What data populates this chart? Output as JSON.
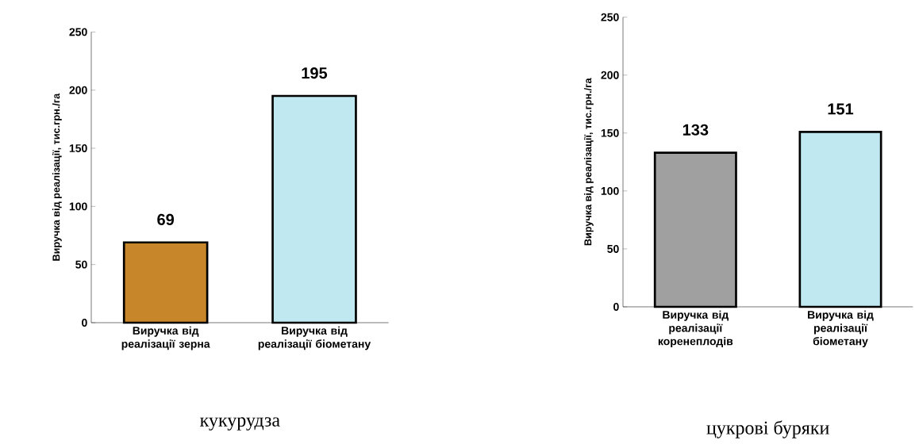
{
  "chart_data": [
    {
      "type": "bar",
      "title": "кукурудза",
      "ylabel": "Виручка від реалізації, тис.грн./га",
      "categories": [
        "Виручка від реалізації зерна",
        "Виручка від реалізації біометану"
      ],
      "values": [
        69,
        195
      ],
      "colors": [
        "#c8862a",
        "#bfe8f0"
      ],
      "ylim": [
        0,
        250
      ],
      "yticks": [
        0,
        50,
        100,
        150,
        200,
        250
      ],
      "data_labels": true
    },
    {
      "type": "bar",
      "title": "цукрові буряки",
      "ylabel": "Виручка від реалізації, тис.грн./га",
      "categories": [
        "Виручка від реалізації коренеплодів",
        "Виручка від реалізації біометану"
      ],
      "values": [
        133,
        151
      ],
      "colors": [
        "#a0a0a0",
        "#bfe8f0"
      ],
      "ylim": [
        0,
        250
      ],
      "yticks": [
        0,
        50,
        100,
        150,
        200,
        250
      ],
      "data_labels": true
    }
  ]
}
